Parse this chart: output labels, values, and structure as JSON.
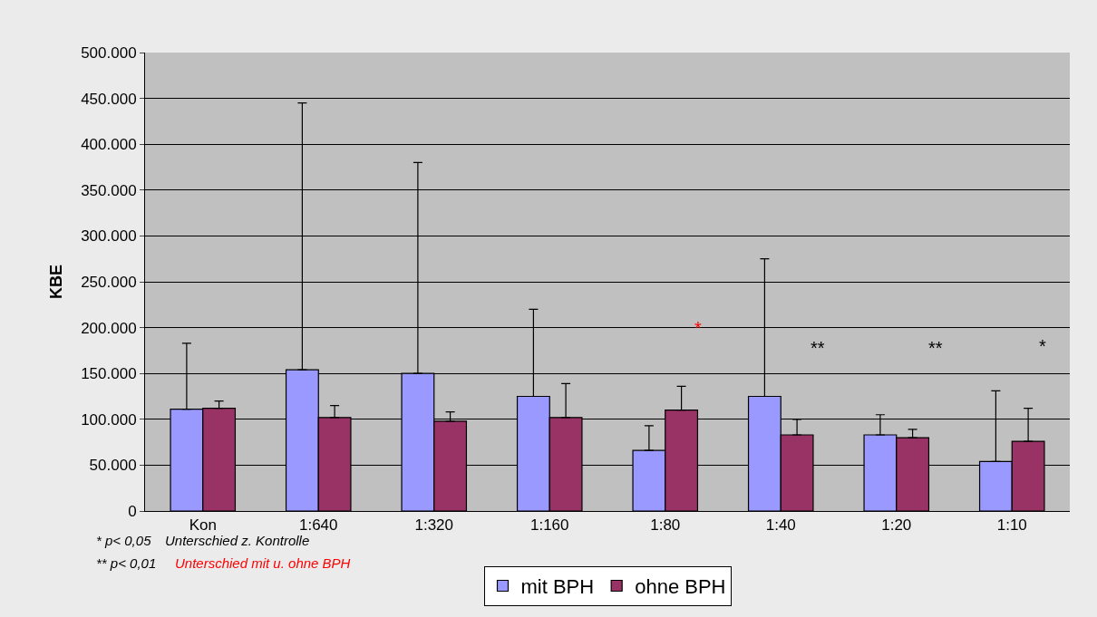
{
  "chart_data": {
    "type": "bar",
    "ylabel": "KBE",
    "categories": [
      "Kon",
      "1:640",
      "1:320",
      "1:160",
      "1:80",
      "1:40",
      "1:20",
      "1:10"
    ],
    "series": [
      {
        "name": "mit BPH",
        "color": "#9999ff",
        "values": [
          111000,
          154000,
          150000,
          125000,
          66000,
          125000,
          83000,
          54000
        ],
        "errors": [
          [
            111000,
            183000
          ],
          [
            154000,
            445000
          ],
          [
            150000,
            380000
          ],
          [
            125000,
            220000
          ],
          [
            66000,
            93000
          ],
          [
            125000,
            275000
          ],
          [
            83000,
            105000
          ],
          [
            54000,
            131000
          ]
        ]
      },
      {
        "name": "ohne BPH",
        "color": "#993366",
        "values": [
          112000,
          102000,
          98000,
          102000,
          110000,
          83000,
          80000,
          76000
        ],
        "errors": [
          [
            112000,
            120000
          ],
          [
            102000,
            115000
          ],
          [
            98000,
            108000
          ],
          [
            102000,
            139000
          ],
          [
            110000,
            136000
          ],
          [
            83000,
            100000
          ],
          [
            80000,
            89000
          ],
          [
            76000,
            112000
          ]
        ]
      }
    ],
    "ylim": [
      0,
      500000
    ],
    "yticks": [
      0,
      {
        "value": 50000,
        "label": "50.000"
      },
      {
        "value": 100000,
        "label": "100.000"
      },
      {
        "value": 150000,
        "label": "150.000"
      },
      {
        "value": 200000,
        "label": "200.000"
      },
      {
        "value": 250000,
        "label": "250.000"
      },
      {
        "value": 300000,
        "label": "300.000"
      },
      {
        "value": 350000,
        "label": "350.000"
      },
      {
        "value": 400000,
        "label": "400.000"
      },
      {
        "value": 450000,
        "label": "450.000"
      },
      {
        "value": 500000,
        "label": "500.000"
      }
    ],
    "grid": "y",
    "legend": "bottom",
    "annotations": [
      "*",
      "**",
      "**",
      "*",
      "* p< 0,05",
      "Unterschied z. Kontrolle",
      "** p< 0,01",
      "Unterschied mit u. ohne BPH"
    ]
  }
}
